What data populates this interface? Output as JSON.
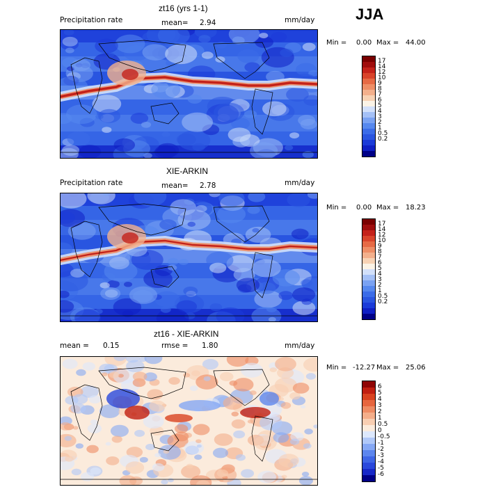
{
  "season": "JJA",
  "colors": {
    "rate_scale": [
      "#000087",
      "#0f1fc4",
      "#1b3bd8",
      "#2a55e0",
      "#3b6ce8",
      "#5688ee",
      "#7aa2f2",
      "#a4c0f6",
      "#d2e0fa",
      "#fbf3e6",
      "#f7d2b4",
      "#f3b08c",
      "#ee8e66",
      "#e66a45",
      "#d9442b",
      "#c4221a",
      "#a00d0d",
      "#7a0000"
    ],
    "diff_scale": [
      "#000087",
      "#1728c8",
      "#2a48dc",
      "#3f66e6",
      "#5d86ee",
      "#86a8f4",
      "#b0c8f8",
      "#dde8fc",
      "#fbebdc",
      "#f8ceb2",
      "#f4ae8a",
      "#ee8c64",
      "#e6663f",
      "#d9421f",
      "#c01e10",
      "#8f0505"
    ]
  },
  "panels": [
    {
      "title": "zt16 (yrs 1-1)",
      "left": "Precipitation rate",
      "mean_label": "mean=",
      "mean": "2.94",
      "units": "mm/day",
      "min_label": "Min =",
      "min": "0.00",
      "max_label": "Max =",
      "max": "44.00",
      "levels": [
        "17",
        "14",
        "12",
        "10",
        "9",
        "8",
        "7",
        "6",
        "5",
        "4",
        "3",
        "2",
        "1",
        "0.5",
        "0.2"
      ],
      "scale": "rate"
    },
    {
      "title": "XIE-ARKIN",
      "left": "Precipitation rate",
      "mean_label": "mean=",
      "mean": "2.78",
      "units": "mm/day",
      "min_label": "Min =",
      "min": "0.00",
      "max_label": "Max =",
      "max": "18.23",
      "levels": [
        "17",
        "14",
        "12",
        "10",
        "9",
        "8",
        "7",
        "6",
        "5",
        "4",
        "3",
        "2",
        "1",
        "0.5",
        "0.2"
      ],
      "scale": "rate"
    },
    {
      "title": "zt16 - XIE-ARKIN",
      "left": "mean =",
      "mean": "0.15",
      "rmse_label": "rmse =",
      "rmse": "1.80",
      "units": "mm/day",
      "min_label": "Min =",
      "min": "-12.27",
      "max_label": "Max =",
      "max": "25.06",
      "levels": [
        "6",
        "5",
        "4",
        "3",
        "2",
        "1",
        "0.5",
        "0",
        "-0.5",
        "-1",
        "-2",
        "-3",
        "-4",
        "-5",
        "-6"
      ],
      "scale": "diff"
    }
  ]
}
